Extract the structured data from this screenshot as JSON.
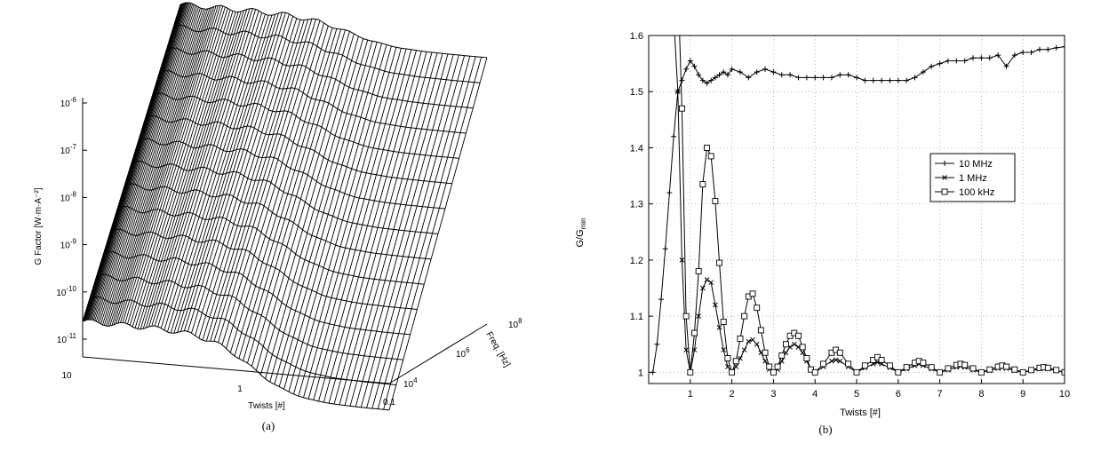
{
  "chart_data": [
    {
      "panel_label": "(a)",
      "type": "surface",
      "xlabel": "Twists [#]",
      "ylabel": "Freq. [Hz]",
      "zlabel": "G Factor [W·m·A⁻²]",
      "x_ticks": [
        "10",
        "1",
        "0.1"
      ],
      "y_ticks": [
        {
          "base": "10",
          "exp": "4"
        },
        {
          "base": "10",
          "exp": "6"
        },
        {
          "base": "10",
          "exp": "8"
        }
      ],
      "z_ticks": [
        {
          "base": "10",
          "exp": "-11"
        },
        {
          "base": "10",
          "exp": "-10"
        },
        {
          "base": "10",
          "exp": "-9"
        },
        {
          "base": "10",
          "exp": "-8"
        },
        {
          "base": "10",
          "exp": "-7"
        },
        {
          "base": "10",
          "exp": "-6"
        }
      ],
      "x_scale": "log",
      "y_scale": "log",
      "z_scale": "log",
      "x_range": [
        0.1,
        10
      ],
      "y_range": [
        10000,
        100000000
      ],
      "z_range": [
        1e-11,
        1e-06
      ],
      "surface_color": "#ffffff",
      "line_color": "#000000"
    },
    {
      "panel_label": "(b)",
      "type": "line",
      "xlabel": "Twists [#]",
      "ylabel": "G/G",
      "ylabel_sub": "min",
      "xlim": [
        0,
        10
      ],
      "ylim": [
        0.98,
        1.6
      ],
      "x_ticks": [
        1,
        2,
        3,
        4,
        5,
        6,
        7,
        8,
        9,
        10
      ],
      "y_ticks": [
        1,
        1.1,
        1.2,
        1.3,
        1.4,
        1.5,
        1.6
      ],
      "y_tick_labels": [
        "1",
        "1.1",
        "1.2",
        "1.3",
        "1.4",
        "1.5",
        "1.6"
      ],
      "grid": true,
      "legend_position": "right",
      "series": [
        {
          "name": "10 MHz",
          "marker": "plus",
          "x": [
            0.1,
            0.2,
            0.3,
            0.4,
            0.5,
            0.6,
            0.7,
            0.8,
            0.9,
            1.0,
            1.1,
            1.2,
            1.3,
            1.4,
            1.5,
            1.6,
            1.7,
            1.8,
            1.9,
            2.0,
            2.2,
            2.4,
            2.6,
            2.8,
            3.0,
            3.2,
            3.4,
            3.6,
            3.8,
            4.0,
            4.2,
            4.4,
            4.6,
            4.8,
            5.0,
            5.2,
            5.4,
            5.6,
            5.8,
            6.0,
            6.2,
            6.4,
            6.6,
            6.8,
            7.0,
            7.2,
            7.4,
            7.6,
            7.8,
            8.0,
            8.2,
            8.4,
            8.6,
            8.8,
            9.0,
            9.2,
            9.4,
            9.6,
            9.8,
            10.0
          ],
          "y": [
            1.0,
            1.05,
            1.13,
            1.22,
            1.32,
            1.42,
            1.5,
            1.52,
            1.54,
            1.555,
            1.545,
            1.53,
            1.52,
            1.515,
            1.52,
            1.525,
            1.53,
            1.535,
            1.53,
            1.54,
            1.535,
            1.525,
            1.535,
            1.54,
            1.535,
            1.53,
            1.53,
            1.525,
            1.525,
            1.525,
            1.525,
            1.525,
            1.53,
            1.53,
            1.525,
            1.52,
            1.52,
            1.52,
            1.52,
            1.52,
            1.52,
            1.525,
            1.535,
            1.545,
            1.55,
            1.555,
            1.555,
            1.555,
            1.56,
            1.56,
            1.56,
            1.565,
            1.545,
            1.565,
            1.57,
            1.57,
            1.575,
            1.575,
            1.578,
            1.58
          ]
        },
        {
          "name": "1 MHz",
          "marker": "x",
          "x": [
            0.7,
            0.8,
            0.9,
            1.0,
            1.1,
            1.2,
            1.3,
            1.4,
            1.5,
            1.6,
            1.7,
            1.8,
            1.9,
            2.0,
            2.1,
            2.2,
            2.3,
            2.4,
            2.5,
            2.6,
            2.7,
            2.8,
            2.9,
            3.0,
            3.1,
            3.2,
            3.3,
            3.4,
            3.5,
            3.6,
            3.7,
            3.8,
            3.9,
            4.0,
            4.2,
            4.4,
            4.5,
            4.6,
            4.8,
            5.0,
            5.2,
            5.4,
            5.5,
            5.6,
            5.8,
            6.0,
            6.2,
            6.4,
            6.5,
            6.6,
            6.8,
            7.0,
            7.2,
            7.4,
            7.5,
            7.6,
            7.8,
            8.0,
            8.2,
            8.4,
            8.5,
            8.6,
            8.8,
            9.0,
            9.2,
            9.4,
            9.5,
            9.6,
            9.8,
            10.0
          ],
          "y": [
            1.5,
            1.2,
            1.04,
            1.0,
            1.04,
            1.1,
            1.15,
            1.165,
            1.16,
            1.12,
            1.08,
            1.04,
            1.01,
            1.0,
            1.01,
            1.025,
            1.04,
            1.055,
            1.058,
            1.05,
            1.035,
            1.02,
            1.005,
            1.0,
            1.005,
            1.02,
            1.035,
            1.045,
            1.05,
            1.045,
            1.035,
            1.02,
            1.005,
            1.0,
            1.01,
            1.02,
            1.022,
            1.02,
            1.01,
            1.0,
            1.008,
            1.015,
            1.018,
            1.015,
            1.008,
            1.0,
            1.006,
            1.012,
            1.015,
            1.012,
            1.006,
            1.0,
            1.004,
            1.009,
            1.011,
            1.009,
            1.004,
            1.0,
            1.003,
            1.007,
            1.009,
            1.007,
            1.003,
            1.0,
            1.003,
            1.006,
            1.008,
            1.006,
            1.003,
            1.0
          ]
        },
        {
          "name": "100 kHz",
          "marker": "square",
          "x": [
            0.8,
            0.9,
            1.0,
            1.1,
            1.2,
            1.3,
            1.4,
            1.5,
            1.6,
            1.7,
            1.8,
            1.9,
            2.0,
            2.1,
            2.2,
            2.3,
            2.4,
            2.5,
            2.6,
            2.7,
            2.8,
            2.9,
            3.0,
            3.1,
            3.2,
            3.3,
            3.4,
            3.5,
            3.6,
            3.7,
            3.8,
            3.9,
            4.0,
            4.2,
            4.4,
            4.5,
            4.6,
            4.8,
            5.0,
            5.2,
            5.4,
            5.5,
            5.6,
            5.8,
            6.0,
            6.2,
            6.4,
            6.5,
            6.6,
            6.8,
            7.0,
            7.2,
            7.4,
            7.5,
            7.6,
            7.8,
            8.0,
            8.2,
            8.4,
            8.5,
            8.6,
            8.8,
            9.0,
            9.2,
            9.4,
            9.5,
            9.6,
            9.8,
            10.0
          ],
          "y": [
            1.47,
            1.1,
            1.0,
            1.07,
            1.18,
            1.335,
            1.4,
            1.385,
            1.305,
            1.195,
            1.09,
            1.025,
            1.0,
            1.02,
            1.06,
            1.1,
            1.135,
            1.14,
            1.115,
            1.075,
            1.035,
            1.01,
            1.0,
            1.01,
            1.03,
            1.05,
            1.065,
            1.07,
            1.065,
            1.045,
            1.025,
            1.005,
            1.0,
            1.015,
            1.035,
            1.04,
            1.035,
            1.015,
            1.0,
            1.012,
            1.022,
            1.027,
            1.022,
            1.012,
            1.0,
            1.009,
            1.017,
            1.02,
            1.017,
            1.009,
            1.0,
            1.007,
            1.013,
            1.015,
            1.013,
            1.007,
            1.0,
            1.005,
            1.01,
            1.012,
            1.01,
            1.005,
            1.0,
            1.004,
            1.008,
            1.009,
            1.008,
            1.004,
            1.0
          ]
        }
      ]
    }
  ]
}
